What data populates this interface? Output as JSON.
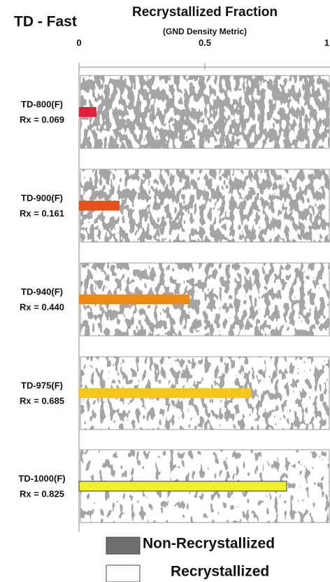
{
  "chart_data": {
    "type": "bar",
    "orientation": "horizontal",
    "panel_title": "TD - Fast",
    "title": "Recrystallized Fraction",
    "subtitle": "(GND Density Metric)",
    "categories": [
      "TD-800(F)",
      "TD-900(F)",
      "TD-940(F)",
      "TD-975(F)",
      "TD-1000(F)"
    ],
    "values": [
      0.069,
      0.161,
      0.44,
      0.685,
      0.825
    ],
    "value_labels": [
      "Rx = 0.069",
      "Rx = 0.161",
      "Rx = 0.440",
      "Rx = 0.685",
      "Rx = 0.825"
    ],
    "colors": [
      "#e0203c",
      "#e8501e",
      "#f08a10",
      "#f5c518",
      "#eef030"
    ],
    "xlim": [
      0,
      1
    ],
    "xticks": [
      0,
      0.5,
      1
    ],
    "legend": [
      {
        "name": "Non-Recrystallized",
        "color": "#6e6e6e"
      },
      {
        "name": "Recrystallized",
        "color": "#ffffff"
      }
    ]
  }
}
